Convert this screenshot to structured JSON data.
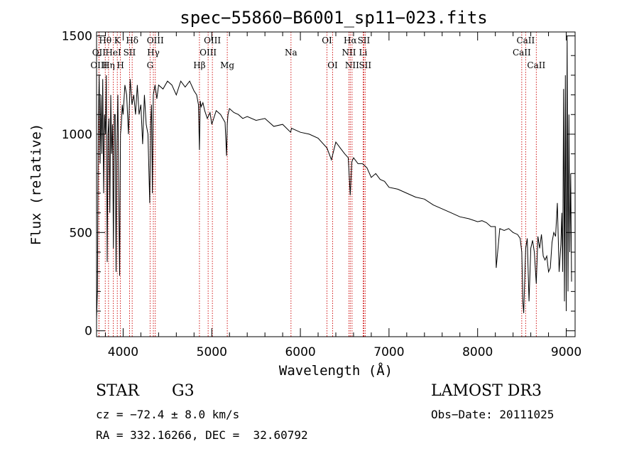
{
  "chart_data": {
    "type": "line",
    "title": "spec−55860−B6001_sp11−023.fits",
    "xlabel": "Wavelength (Å)",
    "ylabel": "Flux (relative)",
    "xlim": [
      3700,
      9100
    ],
    "ylim": [
      -30,
      1520
    ],
    "xticks": [
      4000,
      5000,
      6000,
      7000,
      8000,
      9000
    ],
    "yticks": [
      0,
      500,
      1000,
      1500
    ],
    "line_color": "#cc0000",
    "series": [
      {
        "name": "flux",
        "x": [
          3700,
          3710,
          3720,
          3730,
          3740,
          3750,
          3760,
          3770,
          3780,
          3790,
          3800,
          3810,
          3820,
          3830,
          3840,
          3850,
          3860,
          3870,
          3880,
          3890,
          3900,
          3910,
          3920,
          3930,
          3940,
          3950,
          3960,
          3970,
          3980,
          3990,
          4000,
          4020,
          4040,
          4060,
          4080,
          4100,
          4120,
          4140,
          4160,
          4180,
          4200,
          4220,
          4240,
          4260,
          4280,
          4300,
          4310,
          4320,
          4330,
          4340,
          4360,
          4380,
          4400,
          4450,
          4500,
          4550,
          4600,
          4650,
          4700,
          4750,
          4800,
          4830,
          4850,
          4861,
          4870,
          4880,
          4900,
          4920,
          4950,
          4980,
          5000,
          5050,
          5100,
          5150,
          5167,
          5175,
          5183,
          5200,
          5250,
          5300,
          5350,
          5400,
          5500,
          5600,
          5700,
          5800,
          5890,
          5900,
          6000,
          6100,
          6200,
          6300,
          6350,
          6400,
          6450,
          6500,
          6540,
          6563,
          6580,
          6600,
          6650,
          6700,
          6750,
          6800,
          6850,
          6900,
          6950,
          7000,
          7100,
          7200,
          7300,
          7400,
          7500,
          7600,
          7700,
          7800,
          7900,
          8000,
          8050,
          8100,
          8150,
          8200,
          8210,
          8250,
          8300,
          8350,
          8400,
          8450,
          8480,
          8498,
          8510,
          8520,
          8542,
          8560,
          8580,
          8600,
          8620,
          8640,
          8662,
          8680,
          8700,
          8720,
          8740,
          8760,
          8780,
          8800,
          8820,
          8840,
          8860,
          8880,
          8900,
          8920,
          8940,
          8950,
          8960,
          8970,
          8980,
          8990,
          9000,
          9010,
          9020,
          9030,
          9040,
          9050,
          9060
        ],
        "y": [
          60,
          200,
          1050,
          1300,
          850,
          1200,
          900,
          1280,
          700,
          1100,
          1000,
          1300,
          350,
          1000,
          1080,
          600,
          1200,
          900,
          1050,
          420,
          1100,
          1100,
          300,
          950,
          1200,
          700,
          280,
          1000,
          1050,
          1150,
          1100,
          1250,
          1200,
          1000,
          1280,
          1150,
          1200,
          1100,
          1250,
          1100,
          1150,
          950,
          1200,
          1050,
          1000,
          650,
          1050,
          1150,
          700,
          1200,
          1250,
          1180,
          1250,
          1230,
          1270,
          1250,
          1200,
          1270,
          1240,
          1270,
          1220,
          1200,
          1150,
          920,
          1170,
          1140,
          1160,
          1120,
          1080,
          1110,
          1050,
          1120,
          1100,
          1060,
          890,
          1050,
          1100,
          1130,
          1110,
          1100,
          1080,
          1090,
          1070,
          1080,
          1040,
          1050,
          1010,
          1030,
          1010,
          1000,
          980,
          930,
          870,
          960,
          930,
          900,
          880,
          690,
          860,
          880,
          850,
          850,
          830,
          780,
          800,
          770,
          760,
          730,
          720,
          700,
          680,
          670,
          640,
          620,
          600,
          580,
          570,
          555,
          560,
          550,
          530,
          530,
          320,
          520,
          510,
          520,
          500,
          490,
          470,
          400,
          150,
          90,
          420,
          470,
          150,
          420,
          460,
          400,
          240,
          480,
          420,
          490,
          380,
          360,
          380,
          300,
          320,
          450,
          500,
          480,
          650,
          300,
          440,
          600,
          300,
          1230,
          150,
          1300,
          100,
          1500,
          200,
          1100,
          400,
          800,
          250
        ]
      }
    ],
    "spectral_lines": [
      {
        "name": "Hθ",
        "wavelength": 3798,
        "row": 1
      },
      {
        "name": "OII",
        "wavelength": 3727,
        "row": 2
      },
      {
        "name": "OIII",
        "wavelength": 3727,
        "row": 3
      },
      {
        "name": "Hη",
        "wavelength": 3835,
        "row": 3
      },
      {
        "name": "K",
        "wavelength": 3934,
        "row": 1
      },
      {
        "name": "HeI",
        "wavelength": 3889,
        "row": 2
      },
      {
        "name": "H",
        "wavelength": 3969,
        "row": 3
      },
      {
        "name": "Hδ",
        "wavelength": 4102,
        "row": 1
      },
      {
        "name": "SII",
        "wavelength": 4072,
        "row": 2
      },
      {
        "name": "OIII",
        "wavelength": 4363,
        "row": 1
      },
      {
        "name": "Hγ",
        "wavelength": 4341,
        "row": 2
      },
      {
        "name": "G",
        "wavelength": 4304,
        "row": 3
      },
      {
        "name": "Hβ",
        "wavelength": 4861,
        "row": 3
      },
      {
        "name": "OIII",
        "wavelength": 5007,
        "row": 1
      },
      {
        "name": "OIII",
        "wavelength": 4959,
        "row": 2
      },
      {
        "name": "Mg",
        "wavelength": 5175,
        "row": 3
      },
      {
        "name": "Na",
        "wavelength": 5894,
        "row": 2
      },
      {
        "name": "OI",
        "wavelength": 6300,
        "row": 1
      },
      {
        "name": "OI",
        "wavelength": 6364,
        "row": 3
      },
      {
        "name": "Hα",
        "wavelength": 6563,
        "row": 1
      },
      {
        "name": "NII",
        "wavelength": 6548,
        "row": 2
      },
      {
        "name": "NII",
        "wavelength": 6583,
        "row": 3
      },
      {
        "name": "SII",
        "wavelength": 6716,
        "row": 1
      },
      {
        "name": "Li",
        "wavelength": 6708,
        "row": 2
      },
      {
        "name": "SII",
        "wavelength": 6731,
        "row": 3
      },
      {
        "name": "CaII",
        "wavelength": 8542,
        "row": 1
      },
      {
        "name": "CaII",
        "wavelength": 8498,
        "row": 2
      },
      {
        "name": "CaII",
        "wavelength": 8662,
        "row": 3
      }
    ]
  },
  "info": {
    "class": "STAR",
    "subclass": "G3",
    "survey": "LAMOST DR3",
    "cz": "cz = −72.4 ± 8.0 km/s",
    "obs_date": "Obs−Date: 20111025",
    "coords": "RA = 332.16266, DEC =  32.60792"
  }
}
